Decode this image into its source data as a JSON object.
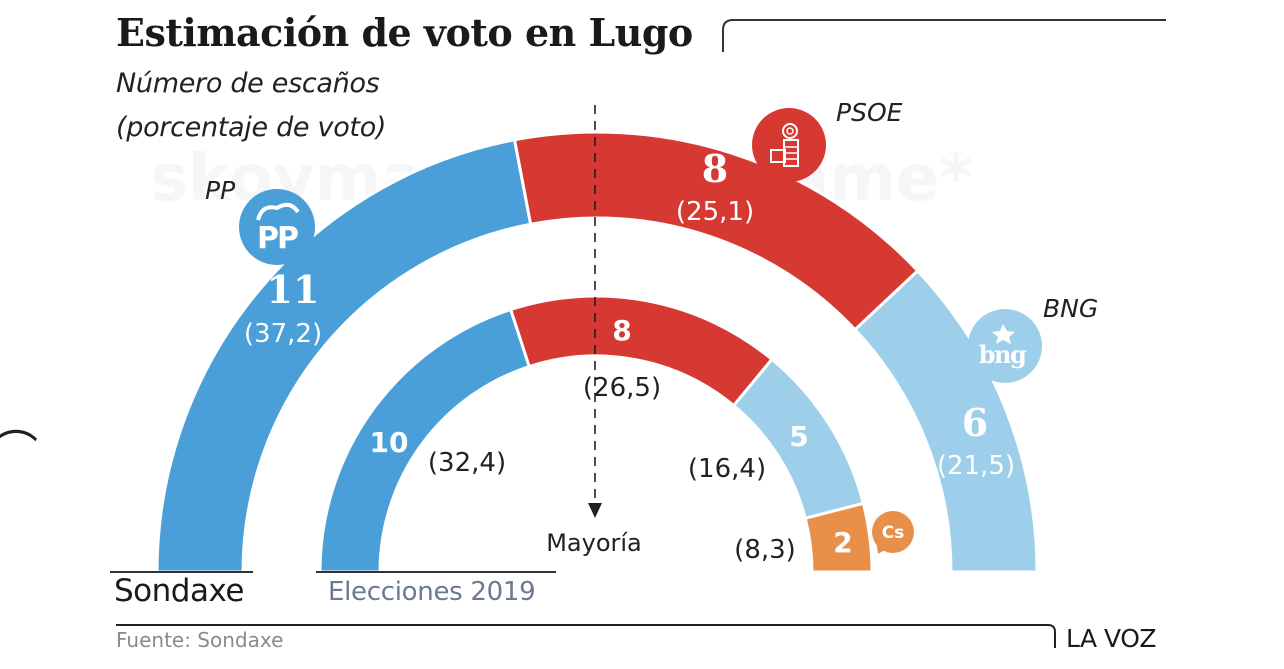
{
  "header": {
    "title": "Estimación de voto en Lugo",
    "subtitle_line1": "Número de escaños",
    "subtitle_line2": "(porcentaje de voto)"
  },
  "footer": {
    "source": "Fuente: Sondaxe",
    "brand": "LA VOZ"
  },
  "watermark": "skoymas#contactame*",
  "colors": {
    "PP": "#4a9fd8",
    "PSOE": "#d63832",
    "BNG": "#9dcfea",
    "Cs": "#e8904a"
  },
  "chart_data": {
    "type": "parliament-semicircle",
    "title": "Estimación de voto en Lugo",
    "subtitle": "Número de escaños (porcentaje de voto)",
    "total_seats": 25,
    "majority_label": "Mayoría",
    "majority_seats": 13,
    "series": [
      {
        "name": "Sondaxe",
        "ring": "outer",
        "parties": [
          {
            "party": "PP",
            "seats": 11,
            "vote_pct": "37,2",
            "logo": "pp-logo-icon"
          },
          {
            "party": "PSOE",
            "seats": 8,
            "vote_pct": "25,1",
            "logo": "psoe-rose-fist-icon"
          },
          {
            "party": "BNG",
            "seats": 6,
            "vote_pct": "21,5",
            "logo": "bng-logo-icon"
          }
        ]
      },
      {
        "name": "Elecciones 2019",
        "ring": "inner",
        "parties": [
          {
            "party": "PP",
            "seats": 10,
            "vote_pct": "32,4"
          },
          {
            "party": "PSOE",
            "seats": 8,
            "vote_pct": "26,5"
          },
          {
            "party": "BNG",
            "seats": 5,
            "vote_pct": "16,4"
          },
          {
            "party": "Cs",
            "seats": 2,
            "vote_pct": "8,3",
            "logo": "cs-logo-icon"
          }
        ]
      }
    ],
    "labels": {
      "PP": "PP",
      "PSOE": "PSOE",
      "BNG": "BNG",
      "Cs": "Cs"
    }
  },
  "display": {
    "outer": {
      "PP": {
        "seats": "11",
        "pct": "(37,2)"
      },
      "PSOE": {
        "seats": "8",
        "pct": "(25,1)"
      },
      "BNG": {
        "seats": "6",
        "pct": "(21,5)"
      }
    },
    "inner": {
      "PP": {
        "seats": "10",
        "pct": "(32,4)"
      },
      "PSOE": {
        "seats": "8",
        "pct": "(26,5)"
      },
      "BNG": {
        "seats": "5",
        "pct": "(16,4)"
      },
      "Cs": {
        "seats": "2",
        "pct": "(8,3)"
      }
    },
    "legend_outer": "Sondaxe",
    "legend_inner": "Elecciones 2019",
    "logos": {
      "pp": "PP",
      "bng": "bng",
      "cs": "Cs"
    }
  }
}
